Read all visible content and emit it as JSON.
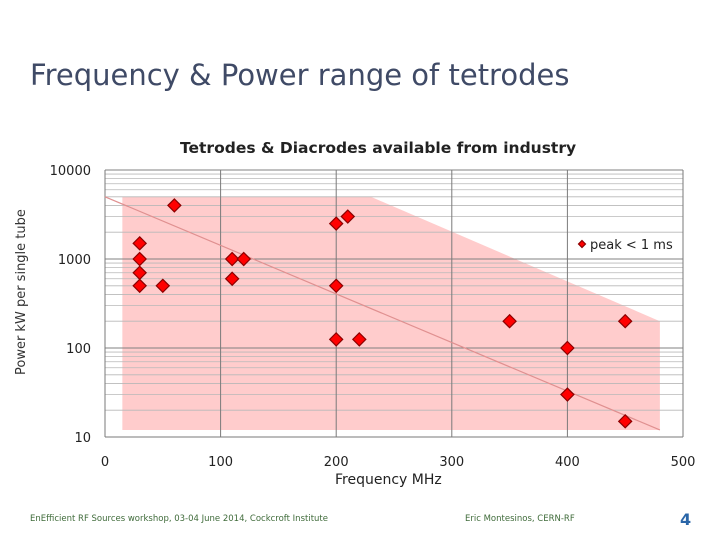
{
  "slide": {
    "title": "Frequency & Power range of tetrodes",
    "footer_left": "EnEfficient RF Sources workshop, 03-04 June 2014, Cockcroft Institute",
    "footer_right": "Eric Montesinos, CERN-RF",
    "page_number": "4"
  },
  "colors": {
    "title": "#3f4a66",
    "marker_fill": "#ff0000",
    "marker_edge": "#8b0000",
    "region_fill": "#ffcccc",
    "trend_line": "#e09090",
    "page_number": "#2a66a8"
  },
  "chart_data": {
    "type": "scatter",
    "title": "Tetrodes & Diacrodes available from industry",
    "xlabel": "Frequency MHz",
    "ylabel": "Power kW per single tube",
    "xlim": [
      0,
      500
    ],
    "ylim": [
      10,
      10000
    ],
    "y_scale": "log",
    "x_ticks": [
      "0",
      "100",
      "200",
      "300",
      "400",
      "500"
    ],
    "y_ticks": [
      "10",
      "100",
      "1000",
      "10000"
    ],
    "grid": true,
    "series": [
      {
        "marker": "diamond",
        "points": [
          {
            "x": 30,
            "y": 1500
          },
          {
            "x": 30,
            "y": 1000
          },
          {
            "x": 30,
            "y": 700
          },
          {
            "x": 30,
            "y": 500
          },
          {
            "x": 50,
            "y": 500
          },
          {
            "x": 60,
            "y": 4000
          },
          {
            "x": 110,
            "y": 1000
          },
          {
            "x": 110,
            "y": 600
          },
          {
            "x": 120,
            "y": 1000
          },
          {
            "x": 200,
            "y": 2500
          },
          {
            "x": 210,
            "y": 3000
          },
          {
            "x": 200,
            "y": 500
          },
          {
            "x": 200,
            "y": 125
          },
          {
            "x": 220,
            "y": 125
          },
          {
            "x": 350,
            "y": 200
          },
          {
            "x": 400,
            "y": 100
          },
          {
            "x": 400,
            "y": 30
          },
          {
            "x": 450,
            "y": 200
          },
          {
            "x": 450,
            "y": 15
          }
        ]
      }
    ],
    "shaded_region": [
      {
        "x": 15,
        "y": 5000
      },
      {
        "x": 230,
        "y": 5000
      },
      {
        "x": 480,
        "y": 200
      },
      {
        "x": 480,
        "y": 12
      },
      {
        "x": 15,
        "y": 12
      }
    ],
    "trend_line": [
      {
        "x": 0,
        "y": 5000
      },
      {
        "x": 480,
        "y": 12
      }
    ],
    "annotations": [
      "peak < 1 ms"
    ]
  }
}
